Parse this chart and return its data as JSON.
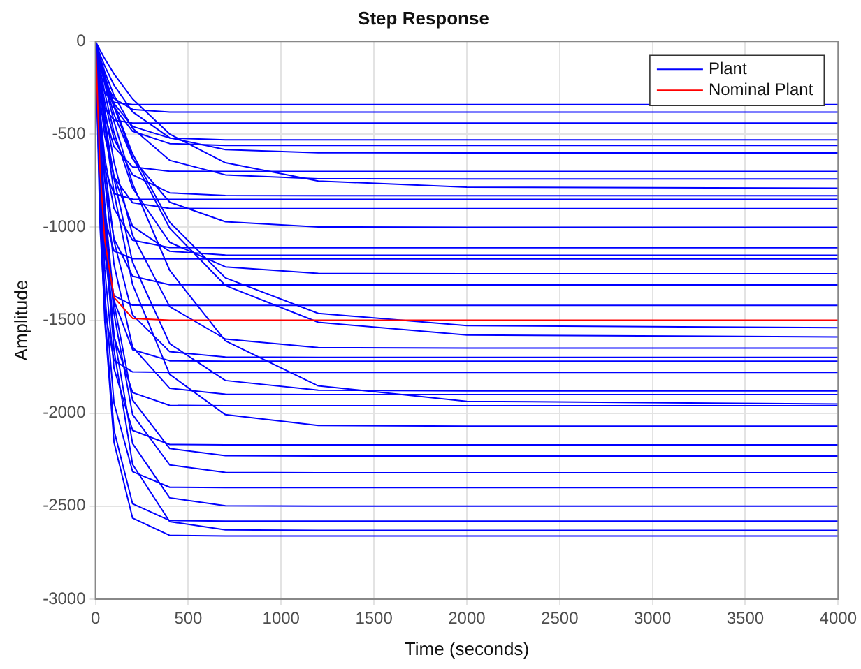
{
  "chart_data": {
    "type": "line",
    "title": "Step Response",
    "xlabel": "Time (seconds)",
    "ylabel": "Amplitude",
    "x": [
      0,
      25,
      50,
      100,
      200,
      400,
      700,
      1200,
      2000,
      4000
    ],
    "xlim": [
      0,
      4000
    ],
    "xticks": [
      0,
      500,
      1000,
      1500,
      2000,
      2500,
      3000,
      3500,
      4000
    ],
    "ylim": [
      -3000,
      0
    ],
    "yticks": [
      -3000,
      -2500,
      -2000,
      -1500,
      -1000,
      -500,
      0
    ],
    "grid": true,
    "legend": "top right",
    "marker": "none",
    "line_style": "solid",
    "series": [
      {
        "name": "Plant",
        "color": "#0000ff",
        "values": [
          0,
          -192,
          -276,
          -328,
          -340,
          -340,
          -340,
          -340,
          -340,
          -340
        ]
      },
      {
        "color": "#0000ff",
        "values": [
          0,
          -130,
          -215,
          -308,
          -366,
          -380,
          -380,
          -380,
          -380,
          -380
        ]
      },
      {
        "color": "#0000ff",
        "values": [
          0,
          -249,
          -357,
          -424,
          -440,
          -440,
          -440,
          -440,
          -440,
          -440
        ]
      },
      {
        "color": "#0000ff",
        "values": [
          0,
          -117,
          -208,
          -335,
          -458,
          -520,
          -530,
          -530,
          -530,
          -530
        ]
      },
      {
        "color": "#0000ff",
        "values": [
          0,
          -124,
          -220,
          -354,
          -484,
          -550,
          -560,
          -560,
          -560,
          -560
        ]
      },
      {
        "color": "#0000ff",
        "values": [
          0,
          -71,
          -133,
          -236,
          -379,
          -519,
          -582,
          -599,
          -600,
          -600
        ]
      },
      {
        "color": "#0000ff",
        "values": [
          0,
          -239,
          -396,
          -568,
          -675,
          -699,
          -700,
          -700,
          -700,
          -700
        ]
      },
      {
        "color": "#0000ff",
        "values": [
          0,
          -87,
          -164,
          -291,
          -468,
          -640,
          -718,
          -739,
          -740,
          -740
        ]
      },
      {
        "color": "#0000ff",
        "values": [
          0,
          -48,
          -93,
          -175,
          -310,
          -499,
          -653,
          -751,
          -784,
          -790
        ]
      },
      {
        "color": "#0000ff",
        "values": [
          0,
          -183,
          -326,
          -525,
          -718,
          -815,
          -829,
          -830,
          -830,
          -830
        ]
      },
      {
        "color": "#0000ff",
        "values": [
          0,
          -480,
          -689,
          -819,
          -849,
          -850,
          -850,
          -850,
          -850,
          -850
        ]
      },
      {
        "color": "#0000ff",
        "values": [
          0,
          -307,
          -509,
          -730,
          -868,
          -899,
          -900,
          -900,
          -900,
          -900
        ]
      },
      {
        "color": "#0000ff",
        "values": [
          0,
          -118,
          -221,
          -393,
          -632,
          -865,
          -970,
          -998,
          -1000,
          -1000
        ]
      },
      {
        "color": "#0000ff",
        "values": [
          0,
          -379,
          -627,
          -900,
          -1070,
          -1109,
          -1110,
          -1110,
          -1110,
          -1110
        ]
      },
      {
        "color": "#0000ff",
        "values": [
          0,
          -254,
          -452,
          -727,
          -995,
          -1129,
          -1149,
          -1150,
          -1150,
          -1150
        ]
      },
      {
        "color": "#0000ff",
        "values": [
          0,
          -661,
          -949,
          -1128,
          -1169,
          -1170,
          -1170,
          -1170,
          -1170,
          -1170
        ]
      },
      {
        "color": "#0000ff",
        "values": [
          0,
          -148,
          -276,
          -491,
          -790,
          -1081,
          -1213,
          -1248,
          -1250,
          -1250
        ]
      },
      {
        "color": "#0000ff",
        "values": [
          0,
          -447,
          -740,
          -1062,
          -1263,
          -1309,
          -1310,
          -1310,
          -1310,
          -1310
        ]
      },
      {
        "color": "#0000ff",
        "values": [
          0,
          -802,
          -1152,
          -1369,
          -1419,
          -1420,
          -1420,
          -1420,
          -1420,
          -1420
        ]
      },
      {
        "color": "#0000ff",
        "values": [
          0,
          -94,
          -182,
          -340,
          -605,
          -973,
          -1272,
          -1463,
          -1529,
          -1540
        ]
      },
      {
        "color": "#0000ff",
        "values": [
          0,
          -97,
          -188,
          -351,
          -625,
          -1005,
          -1313,
          -1511,
          -1579,
          -1590
        ]
      },
      {
        "color": "#0000ff",
        "values": [
          0,
          -195,
          -365,
          -648,
          -1043,
          -1427,
          -1601,
          -1647,
          -1650,
          -1650
        ]
      },
      {
        "color": "#0000ff",
        "values": [
          0,
          -376,
          -668,
          -1074,
          -1471,
          -1669,
          -1698,
          -1700,
          -1700,
          -1700
        ]
      },
      {
        "color": "#0000ff",
        "values": [
          0,
          -587,
          -972,
          -1395,
          -1658,
          -1718,
          -1720,
          -1720,
          -1720,
          -1720
        ]
      },
      {
        "color": "#0000ff",
        "values": [
          0,
          -1006,
          -1444,
          -1716,
          -1778,
          -1780,
          -1780,
          -1780,
          -1780,
          -1780
        ]
      },
      {
        "color": "#0000ff",
        "values": [
          0,
          -222,
          -415,
          -739,
          -1188,
          -1626,
          -1824,
          -1876,
          -1880,
          -1880
        ]
      },
      {
        "color": "#0000ff",
        "values": [
          0,
          -420,
          -747,
          -1201,
          -1644,
          -1866,
          -1898,
          -1900,
          -1900,
          -1900
        ]
      },
      {
        "color": "#0000ff",
        "values": [
          0,
          -119,
          -230,
          -431,
          -766,
          -1232,
          -1611,
          -1853,
          -1936,
          -1950
        ]
      },
      {
        "color": "#0000ff",
        "values": [
          0,
          -668,
          -1107,
          -1590,
          -1889,
          -1958,
          -1960,
          -1960,
          -1960,
          -1960
        ]
      },
      {
        "color": "#0000ff",
        "values": [
          0,
          -244,
          -457,
          -814,
          -1308,
          -1791,
          -2008,
          -2066,
          -2070,
          -2070
        ]
      },
      {
        "color": "#0000ff",
        "values": [
          0,
          -740,
          -1226,
          -1760,
          -2092,
          -2168,
          -2170,
          -2170,
          -2170,
          -2170
        ]
      },
      {
        "color": "#0000ff",
        "values": [
          0,
          -493,
          -876,
          -1409,
          -1929,
          -2190,
          -2228,
          -2230,
          -2230,
          -2230
        ]
      },
      {
        "color": "#0000ff",
        "values": [
          0,
          -513,
          -912,
          -1466,
          -2007,
          -2278,
          -2318,
          -2320,
          -2320,
          -2320
        ]
      },
      {
        "color": "#0000ff",
        "values": [
          0,
          -818,
          -1356,
          -1946,
          -2314,
          -2398,
          -2400,
          -2400,
          -2400,
          -2400
        ]
      },
      {
        "color": "#0000ff",
        "values": [
          0,
          -553,
          -983,
          -1580,
          -2163,
          -2455,
          -2498,
          -2500,
          -2500,
          -2500
        ]
      },
      {
        "color": "#0000ff",
        "values": [
          0,
          -880,
          -1458,
          -2092,
          -2487,
          -2577,
          -2580,
          -2580,
          -2580,
          -2580
        ]
      },
      {
        "color": "#0000ff",
        "values": [
          0,
          -581,
          -1034,
          -1662,
          -2275,
          -2583,
          -2627,
          -2630,
          -2630,
          -2630
        ]
      },
      {
        "color": "#0000ff",
        "values": [
          0,
          -907,
          -1503,
          -2157,
          -2564,
          -2657,
          -2660,
          -2660,
          -2660,
          -2660
        ]
      },
      {
        "name": "Nominal Plant",
        "color": "#ff0000",
        "values": [
          0,
          -698,
          -1070,
          -1377,
          -1490,
          -1500,
          -1500,
          -1500,
          -1500,
          -1500
        ]
      }
    ]
  }
}
